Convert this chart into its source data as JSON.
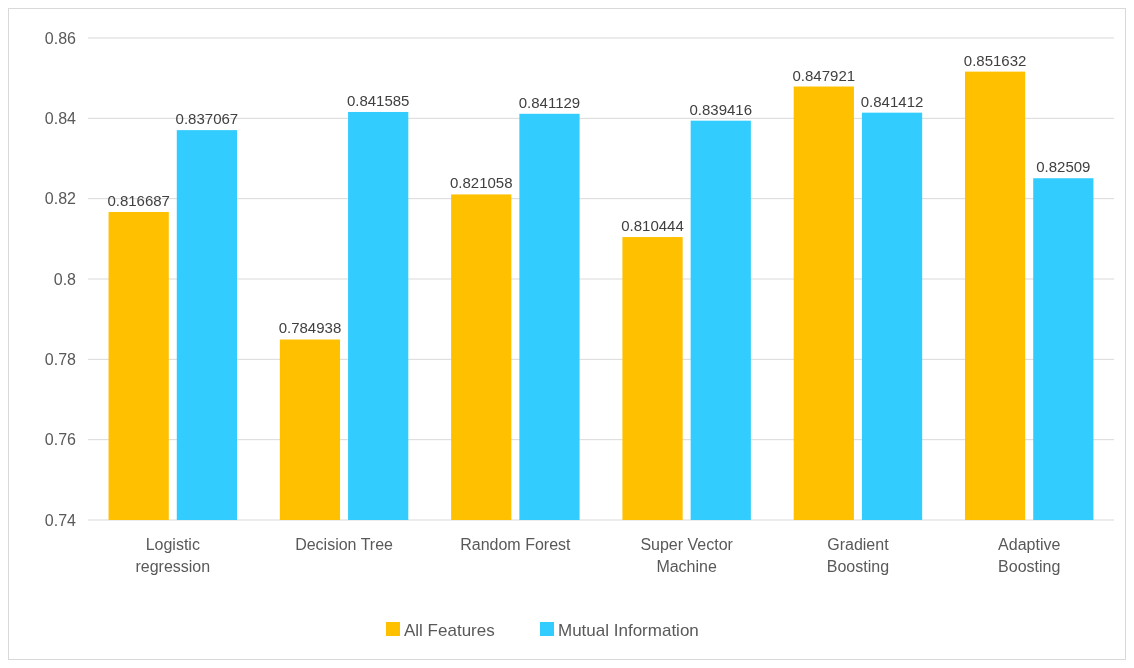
{
  "chart_data": {
    "type": "bar",
    "categories": [
      "Logistic regression",
      "Decision Tree",
      "Random Forest",
      "Super Vector Machine",
      "Gradient Boosting",
      "Adaptive Boosting"
    ],
    "series": [
      {
        "name": "All Features",
        "color": "#ffc000",
        "values": [
          0.816687,
          0.784938,
          0.821058,
          0.810444,
          0.847921,
          0.851632
        ]
      },
      {
        "name": "Mutual Information",
        "color": "#33ccff",
        "values": [
          0.837067,
          0.841585,
          0.841129,
          0.839416,
          0.841412,
          0.82509
        ]
      }
    ],
    "ylim": [
      0.74,
      0.86
    ],
    "yticks": [
      0.74,
      0.76,
      0.78,
      0.8,
      0.82,
      0.84,
      0.86
    ],
    "grid": "y",
    "legend": "bottom",
    "data_labels": true
  }
}
